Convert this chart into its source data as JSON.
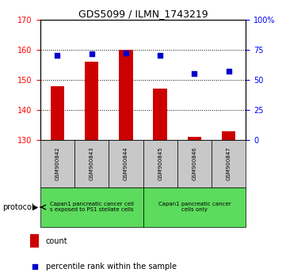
{
  "title": "GDS5099 / ILMN_1743219",
  "samples": [
    "GSM900842",
    "GSM900843",
    "GSM900844",
    "GSM900845",
    "GSM900846",
    "GSM900847"
  ],
  "counts": [
    148.0,
    156.0,
    160.0,
    147.0,
    131.0,
    133.0
  ],
  "percentiles": [
    70.0,
    71.5,
    72.0,
    70.0,
    55.0,
    57.0
  ],
  "ylim_left": [
    130,
    170
  ],
  "ylim_right": [
    0,
    100
  ],
  "yticks_left": [
    130,
    140,
    150,
    160,
    170
  ],
  "yticks_right": [
    0,
    25,
    50,
    75,
    100
  ],
  "ytick_labels_right": [
    "0",
    "25",
    "50",
    "75",
    "100%"
  ],
  "bar_color": "#cc0000",
  "marker_color": "#0000cc",
  "protocol_label1": "Capan1 pancreatic cancer cell\ns exposed to PS1 stellate cells",
  "protocol_label2": "Capan1 pancreatic cancer\ncells only",
  "protocol_bg": "#5ddb5d",
  "tick_label_bg": "#c8c8c8",
  "legend_count_label": "count",
  "legend_pct_label": "percentile rank within the sample",
  "bar_width": 0.4,
  "title_fontsize": 9,
  "axis_fontsize": 7,
  "sample_fontsize": 5,
  "proto_fontsize": 5,
  "legend_fontsize": 7
}
